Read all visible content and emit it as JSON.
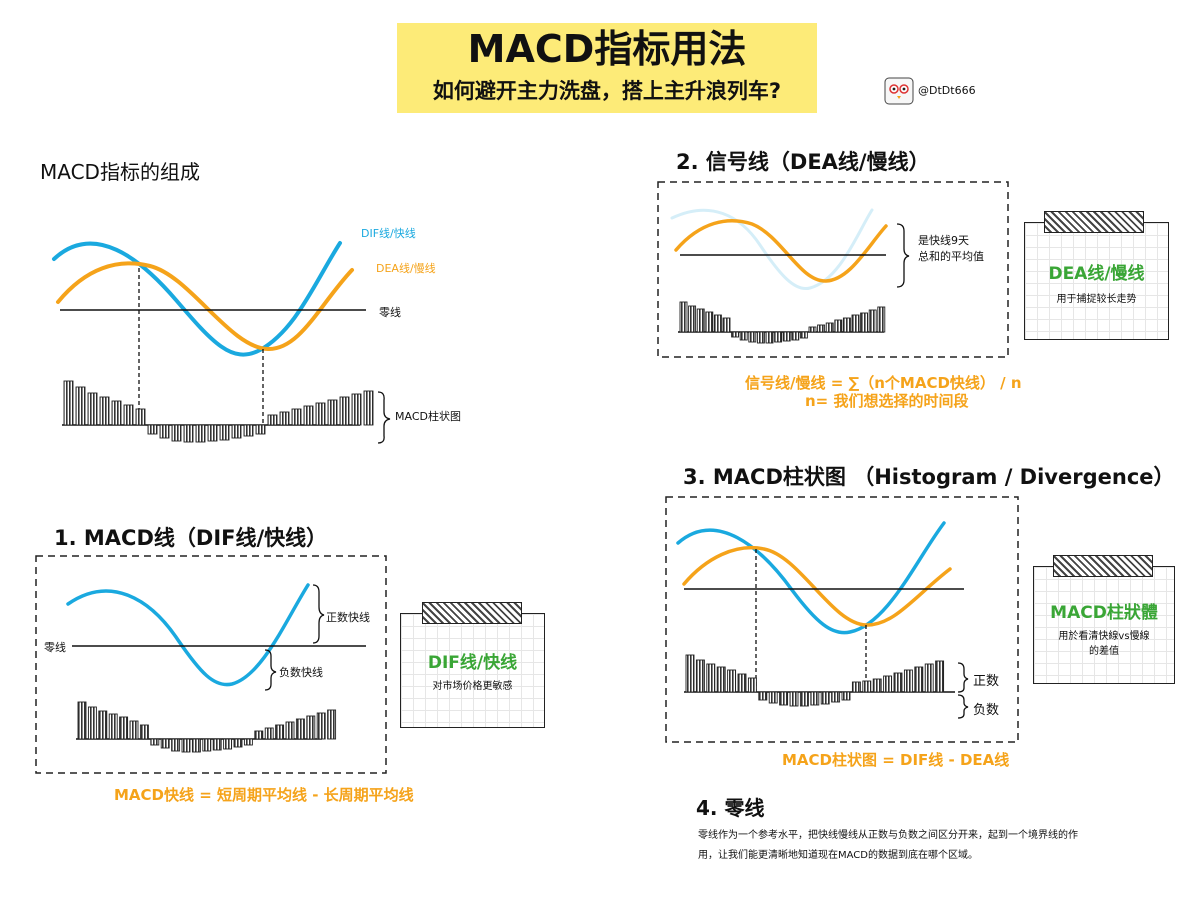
{
  "header": {
    "title": "MACD指标用法",
    "subtitle": "如何避开主力洗盘，搭上主升浪列车?",
    "handle": "@DtDt666"
  },
  "section_components": {
    "heading": "MACD指标的组成",
    "dif_label": "DIF线/快线",
    "dea_label": "DEA线/慢线",
    "zero_label": "零线",
    "hist_label": "MACD柱状图"
  },
  "section_dif": {
    "heading": "1. MACD线（DIF线/快线）",
    "zero_label": "零线",
    "positive_label": "正数快线",
    "negative_label": "负数快线",
    "note_title": "DIF线/快线",
    "note_sub": "对市场价格更敏感",
    "formula": "MACD快线 = 短周期平均线 - 长周期平均线"
  },
  "section_dea": {
    "heading": "2. 信号线（DEA线/慢线）",
    "brace_line1": "是快线9天",
    "brace_line2": "总和的平均值",
    "note_title": "DEA线/慢线",
    "note_sub": "用于捕捉较长走势",
    "formula1": "信号线/慢线 = ∑（n个MACD快线） / n",
    "formula2": "n= 我们想选择的时间段"
  },
  "section_hist": {
    "heading": "3. MACD柱状图 （Histogram / Divergence）",
    "positive_label": "正数",
    "negative_label": "负数",
    "note_title": "MACD柱狀體",
    "note_sub1": "用於看清快線vs慢線",
    "note_sub2": "的差值",
    "formula": "MACD柱状图 = DIF线 - DEA线"
  },
  "section_zero": {
    "heading": "4. 零线",
    "text_line1": "零线作为一个参考水平，把快线慢线从正数与负数之间区分开来，起到一个境界线的作",
    "text_line2": "用，让我们能更清晰地知道现在MACD的数据到底在哪个区域。"
  },
  "colors": {
    "dif": "#1aa9df",
    "dea": "#f5a31a",
    "title_bg": "#fdeb78",
    "note_title": "#3aa636"
  },
  "icons": {
    "avatar": "owl-avatar-icon"
  }
}
